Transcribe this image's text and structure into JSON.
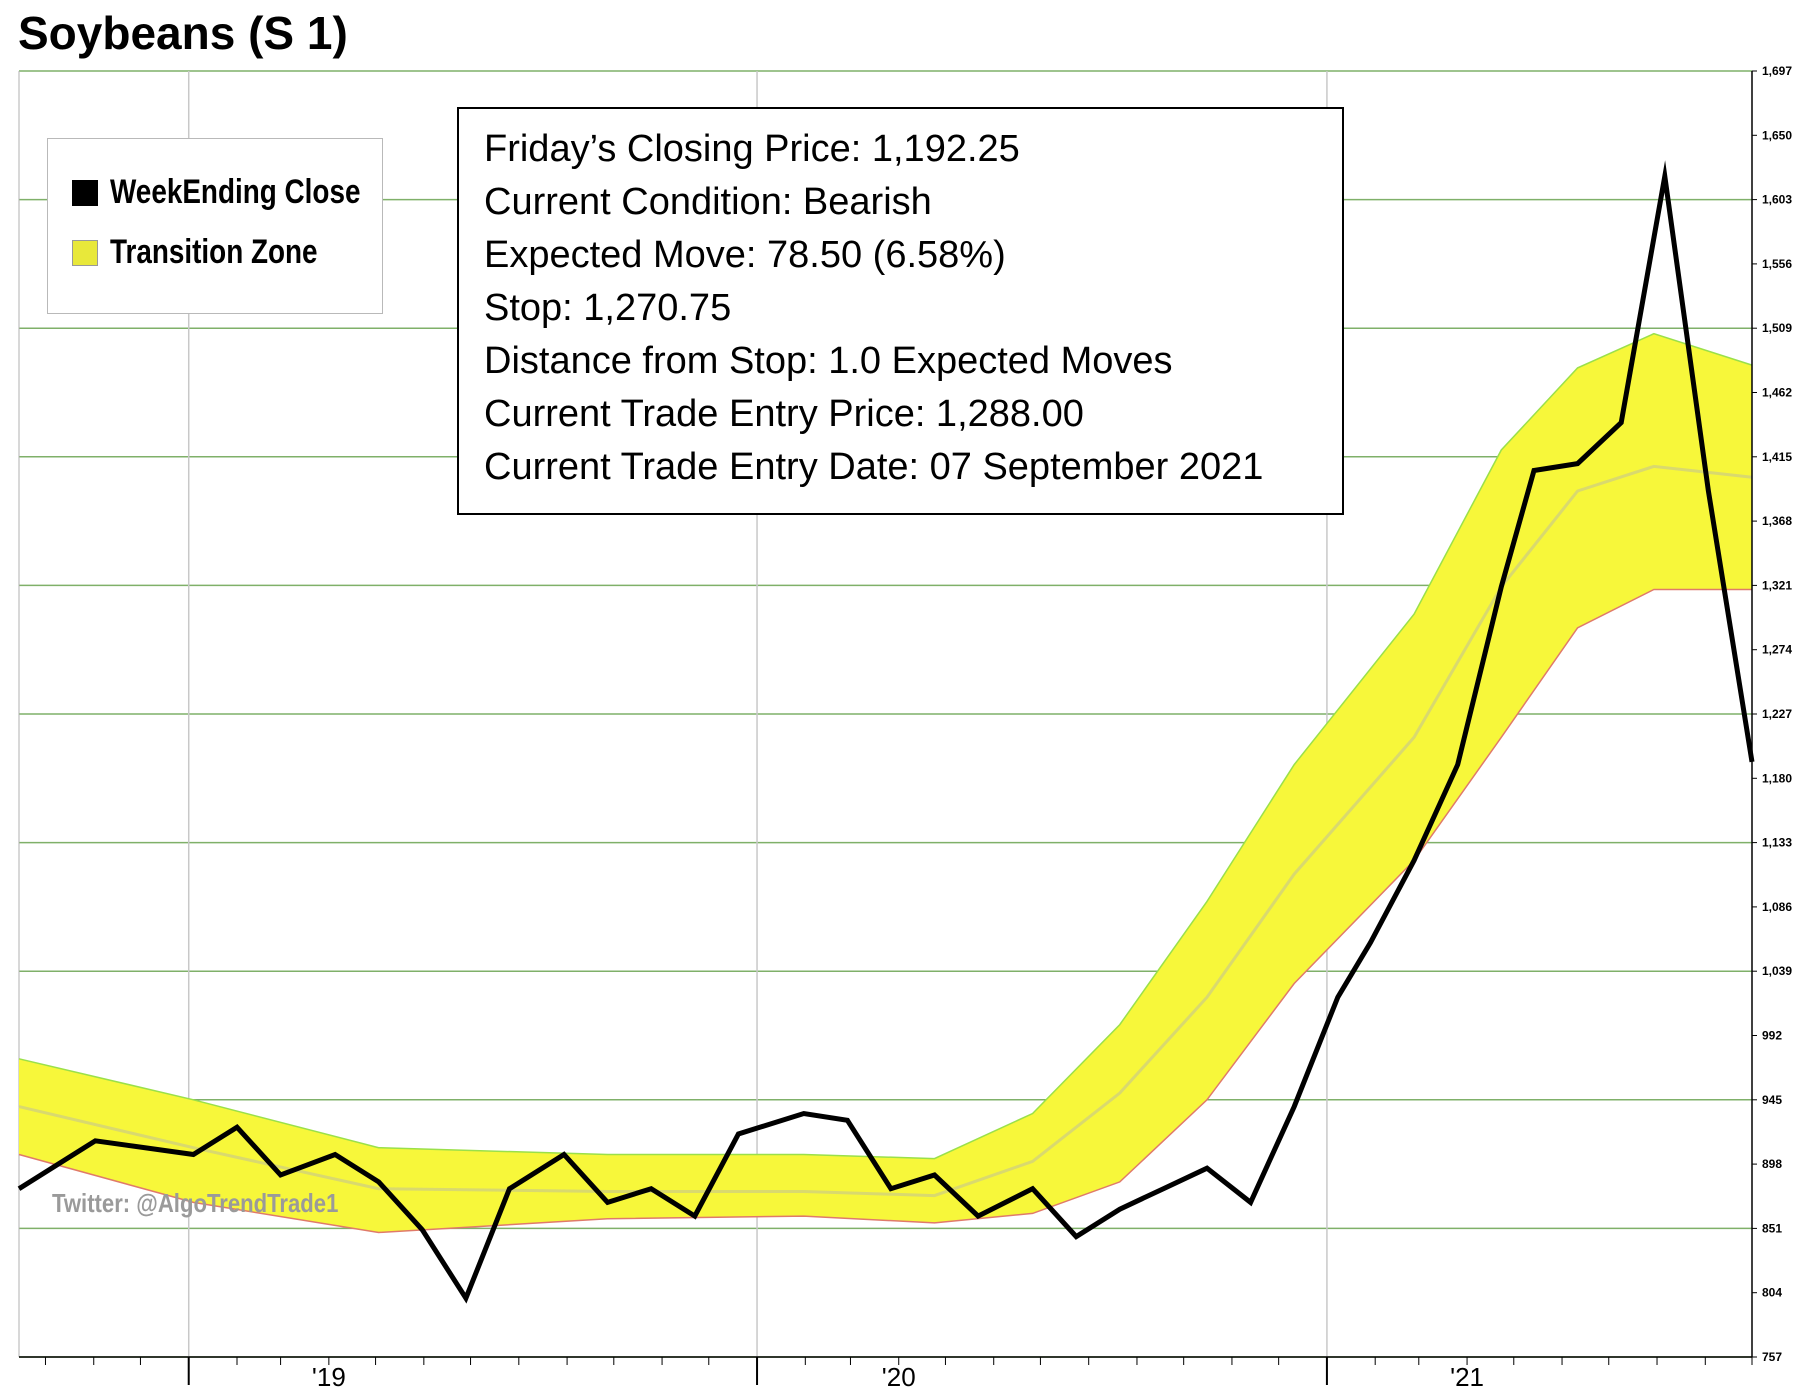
{
  "title": "Soybeans (S 1)",
  "legend": {
    "close": {
      "label": "WeekEnding Close",
      "color": "#000000"
    },
    "zone": {
      "label": "Transition Zone",
      "color": "#e8e83a"
    }
  },
  "info": [
    "Friday’s Closing Price: 1,192.25",
    "Current Condition: Bearish",
    "Expected Move: 78.50 (6.58%)",
    "Stop: 1,270.75",
    "Distance from Stop: 1.0 Expected Moves",
    "Current Trade Entry Price: 1,288.00",
    "Current Trade Entry Date: 07 September 2021"
  ],
  "watermark": "Twitter: @AlgoTrendTrade1",
  "colors": {
    "grid": "#7fb069",
    "zone_fill": "#f7f73a",
    "zone_upper": "#9ae04a",
    "zone_lower": "#e07a6a",
    "zone_mid": "#d9d96e"
  },
  "chart_data": {
    "type": "line",
    "x_axis": {
      "type": "date",
      "tick_labels": [
        "'19",
        "'20",
        "'21"
      ],
      "range": [
        "2018-09-14",
        "2021-10-01"
      ]
    },
    "y_axis": {
      "position": "right",
      "ylim": [
        757,
        1697
      ],
      "ticks": [
        757,
        804,
        851,
        898,
        945,
        992,
        1039,
        1086,
        1133,
        1180,
        1227,
        1274,
        1321,
        1368,
        1415,
        1462,
        1509,
        1556,
        1603,
        1650,
        1697
      ],
      "tick_labels": [
        "757",
        "804",
        "851",
        "898",
        "945",
        "992",
        "1,039",
        "1,086",
        "1,133",
        "1,180",
        "1,227",
        "1,274",
        "1,321",
        "1,368",
        "1,415",
        "1,462",
        "1,509",
        "1,556",
        "1,603",
        "1,650",
        "1,697"
      ]
    },
    "grid": true,
    "legend_placement": "top-left",
    "series": [
      {
        "name": "WeekEnding Close",
        "x": [
          "2018-09-14",
          "2018-11-02",
          "2019-01-04",
          "2019-02-01",
          "2019-03-01",
          "2019-04-05",
          "2019-05-03",
          "2019-05-31",
          "2019-06-28",
          "2019-07-26",
          "2019-08-30",
          "2019-09-27",
          "2019-10-25",
          "2019-11-22",
          "2019-12-20",
          "2020-01-31",
          "2020-02-28",
          "2020-03-27",
          "2020-04-24",
          "2020-05-22",
          "2020-06-26",
          "2020-07-24",
          "2020-08-21",
          "2020-09-18",
          "2020-10-16",
          "2020-11-13",
          "2020-12-11",
          "2021-01-08",
          "2021-01-29",
          "2021-02-26",
          "2021-03-26",
          "2021-04-23",
          "2021-05-14",
          "2021-06-11",
          "2021-07-09",
          "2021-08-06",
          "2021-09-03",
          "2021-10-01"
        ],
        "values": [
          880,
          915,
          905,
          925,
          890,
          905,
          885,
          850,
          800,
          880,
          905,
          870,
          880,
          860,
          920,
          935,
          930,
          880,
          890,
          860,
          880,
          845,
          865,
          880,
          895,
          870,
          940,
          1020,
          1060,
          1120,
          1190,
          1320,
          1405,
          1410,
          1440,
          1620,
          1390,
          1192
        ]
      }
    ],
    "transition_zone": {
      "x": [
        "2018-09-14",
        "2019-01-04",
        "2019-05-03",
        "2019-09-27",
        "2020-01-31",
        "2020-04-24",
        "2020-06-26",
        "2020-08-21",
        "2020-10-16",
        "2020-12-11",
        "2021-02-26",
        "2021-04-23",
        "2021-06-11",
        "2021-07-30",
        "2021-10-01"
      ],
      "upper": [
        975,
        945,
        910,
        905,
        905,
        902,
        935,
        1000,
        1090,
        1190,
        1300,
        1420,
        1480,
        1505,
        1482
      ],
      "middle": [
        940,
        910,
        880,
        878,
        878,
        875,
        900,
        950,
        1020,
        1110,
        1210,
        1320,
        1390,
        1408,
        1400
      ],
      "lower": [
        905,
        870,
        848,
        858,
        860,
        855,
        862,
        885,
        945,
        1030,
        1120,
        1210,
        1290,
        1318,
        1318
      ]
    }
  }
}
